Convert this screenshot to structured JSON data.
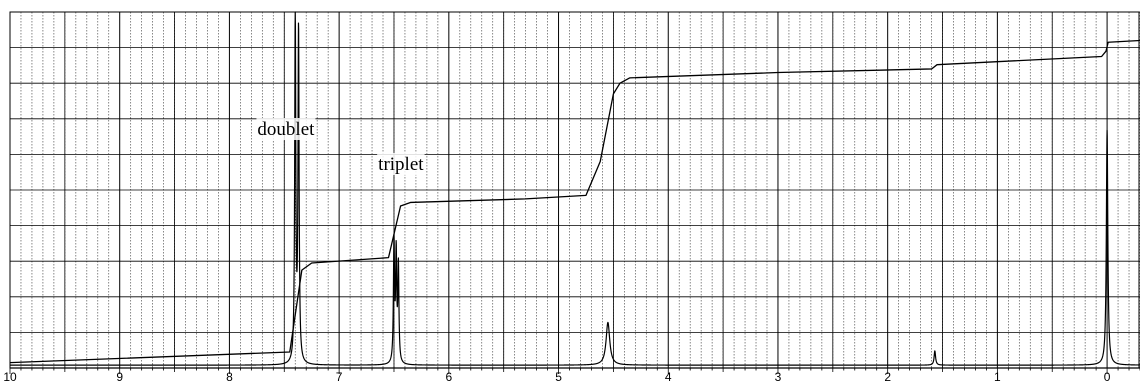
{
  "chart_data": {
    "type": "line",
    "title": "",
    "xlabel": "",
    "ylabel": "",
    "x_reversed": true,
    "xlim": [
      10,
      -0.3
    ],
    "ylim": [
      0,
      100
    ],
    "grid": true,
    "x_ticks": [
      {
        "value": 10,
        "label": "10"
      },
      {
        "value": 9,
        "label": "9"
      },
      {
        "value": 8,
        "label": "8"
      },
      {
        "value": 7,
        "label": "7"
      },
      {
        "value": 6,
        "label": "6"
      },
      {
        "value": 5,
        "label": "5"
      },
      {
        "value": 4,
        "label": "4"
      },
      {
        "value": 3,
        "label": "3"
      },
      {
        "value": 2,
        "label": "2"
      },
      {
        "value": 1,
        "label": "1"
      },
      {
        "value": 0,
        "label": "0"
      }
    ],
    "annotations": [
      {
        "text": "doublet",
        "x": 7.38
      },
      {
        "text": "triplet",
        "x": 6.48
      }
    ],
    "series": [
      {
        "kind": "spectrum",
        "peaks": [
          {
            "x": 7.4,
            "height": 97,
            "width": 0.006
          },
          {
            "x": 7.37,
            "height": 93,
            "width": 0.006
          },
          {
            "x": 6.5,
            "height": 34,
            "width": 0.006
          },
          {
            "x": 6.48,
            "height": 30,
            "width": 0.006
          },
          {
            "x": 6.46,
            "height": 27,
            "width": 0.006
          },
          {
            "x": 4.55,
            "height": 12,
            "width": 0.02
          },
          {
            "x": 1.57,
            "height": 4,
            "width": 0.008
          },
          {
            "x": 0.0,
            "height": 66,
            "width": 0.008
          }
        ]
      },
      {
        "kind": "integral",
        "points": [
          [
            10.0,
            1.5
          ],
          [
            7.45,
            4.5
          ],
          [
            7.34,
            27.5
          ],
          [
            7.25,
            29.5
          ],
          [
            6.55,
            31
          ],
          [
            6.44,
            45.5
          ],
          [
            6.35,
            46.5
          ],
          [
            5.3,
            47.5
          ],
          [
            4.75,
            48.5
          ],
          [
            4.62,
            58
          ],
          [
            4.5,
            77
          ],
          [
            4.44,
            80
          ],
          [
            4.35,
            81.5
          ],
          [
            3.0,
            83
          ],
          [
            1.6,
            84
          ],
          [
            1.55,
            85.2
          ],
          [
            0.05,
            87.5
          ],
          [
            0.01,
            89
          ],
          [
            -0.01,
            91.5
          ],
          [
            -0.3,
            92
          ]
        ]
      }
    ],
    "colors": {
      "line": "#000000",
      "grid_major": "#000000",
      "grid_minor": "#555555"
    }
  }
}
